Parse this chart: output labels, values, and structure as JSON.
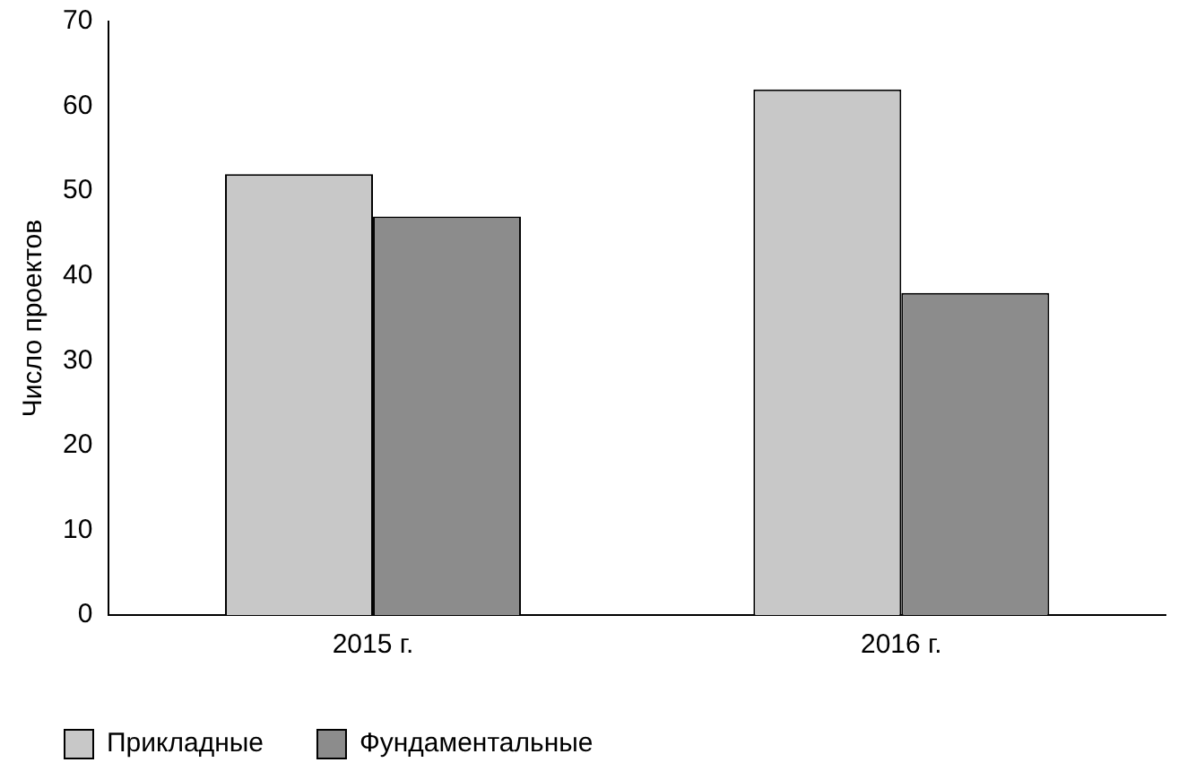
{
  "chart_data": {
    "type": "bar",
    "ylabel": "Число проектов",
    "categories": [
      "2015 г.",
      "2016 г."
    ],
    "series": [
      {
        "name": "Прикладные",
        "color": "#c8c8c8",
        "values": [
          52,
          62
        ]
      },
      {
        "name": "Фундаментальные",
        "color": "#8c8c8c",
        "values": [
          47,
          38
        ]
      }
    ],
    "ylim": [
      0,
      70
    ],
    "yticks": [
      0,
      10,
      20,
      30,
      40,
      50,
      60,
      70
    ],
    "grid": false,
    "legend": "bottom left"
  }
}
